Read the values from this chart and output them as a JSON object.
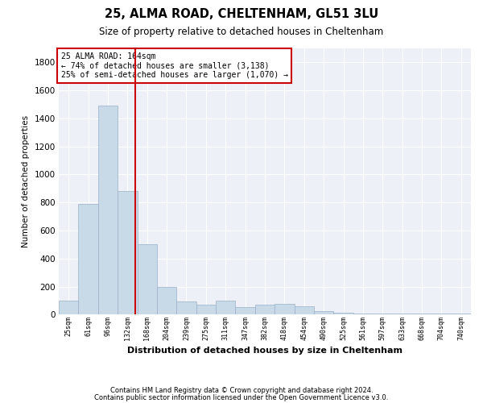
{
  "title1": "25, ALMA ROAD, CHELTENHAM, GL51 3LU",
  "title2": "Size of property relative to detached houses in Cheltenham",
  "xlabel": "Distribution of detached houses by size in Cheltenham",
  "ylabel": "Number of detached properties",
  "footnote1": "Contains HM Land Registry data © Crown copyright and database right 2024.",
  "footnote2": "Contains public sector information licensed under the Open Government Licence v3.0.",
  "annotation_line1": "25 ALMA ROAD: 164sqm",
  "annotation_line2": "← 74% of detached houses are smaller (3,138)",
  "annotation_line3": "25% of semi-detached houses are larger (1,070) →",
  "bar_color": "#c8d9e8",
  "bar_edge_color": "#9ab0c8",
  "line_color": "#cc0000",
  "annotation_box_color": "#cc0000",
  "background_color": "#edf1f7",
  "categories": [
    "25sqm",
    "61sqm",
    "96sqm",
    "132sqm",
    "168sqm",
    "204sqm",
    "239sqm",
    "275sqm",
    "311sqm",
    "347sqm",
    "382sqm",
    "418sqm",
    "454sqm",
    "490sqm",
    "525sqm",
    "561sqm",
    "597sqm",
    "633sqm",
    "668sqm",
    "704sqm",
    "740sqm"
  ],
  "values": [
    100,
    790,
    1490,
    880,
    500,
    200,
    95,
    70,
    100,
    55,
    70,
    75,
    60,
    25,
    15,
    10,
    5,
    5,
    5,
    5,
    5
  ],
  "vline_x": 3.39,
  "ylim": [
    0,
    1900
  ],
  "yticks": [
    0,
    200,
    400,
    600,
    800,
    1000,
    1200,
    1400,
    1600,
    1800
  ]
}
